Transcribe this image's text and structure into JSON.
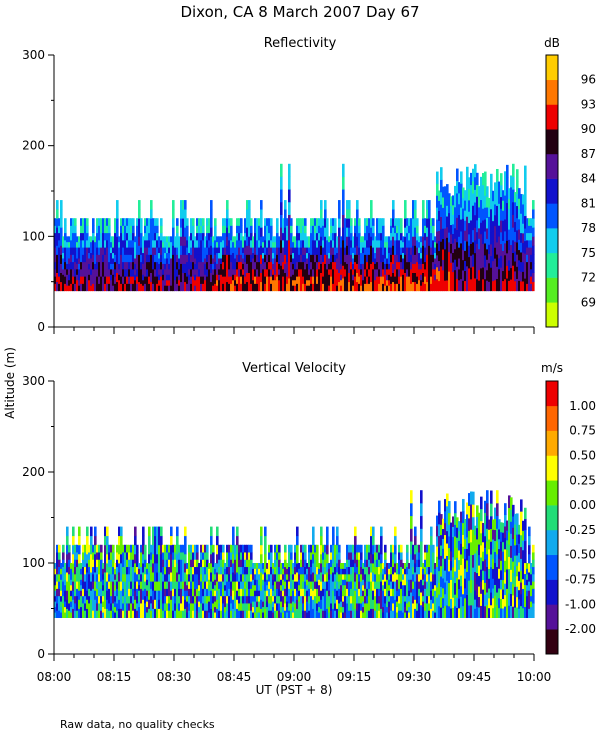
{
  "figure": {
    "title": "Dixon, CA  8 March 2007  Day  67",
    "ylabel": "Altitude (m)",
    "xlabel": "UT  (PST + 8)",
    "footnote": "Raw data, no quality checks"
  },
  "chart_data": [
    {
      "type": "heatmap",
      "title": "Reflectivity",
      "ylabel": "Altitude (m)",
      "xlabel": "UT  (PST + 8)",
      "x_ticks": [
        "08:00",
        "08:15",
        "08:30",
        "08:45",
        "09:00",
        "09:15",
        "09:30",
        "09:45",
        "10:00"
      ],
      "xlim_minutes": [
        0,
        120
      ],
      "y_ticks": [
        0,
        100,
        200,
        300
      ],
      "ylim": [
        0,
        300
      ],
      "colorbar": {
        "unit": "dB",
        "labels": [
          "69",
          "72",
          "75",
          "78",
          "81",
          "84",
          "87",
          "90",
          "93",
          "96"
        ],
        "colors": [
          "#ccff00",
          "#55ee22",
          "#22ee99",
          "#11ccee",
          "#0055ff",
          "#1111cc",
          "#551199",
          "#220011",
          "#ee0000",
          "#ff7700",
          "#ffcc00"
        ]
      },
      "data_profile": {
        "echo_base_m": 40,
        "typical_top_m": 120,
        "max_top_m": 180,
        "core_value_db": 87,
        "edge_value_db": 76
      }
    },
    {
      "type": "heatmap",
      "title": "Vertical Velocity",
      "ylabel": "Altitude (m)",
      "xlabel": "UT  (PST + 8)",
      "x_ticks": [
        "08:00",
        "08:15",
        "08:30",
        "08:45",
        "09:00",
        "09:15",
        "09:30",
        "09:45",
        "10:00"
      ],
      "xlim_minutes": [
        0,
        120
      ],
      "y_ticks": [
        0,
        100,
        200,
        300
      ],
      "ylim": [
        0,
        300
      ],
      "colorbar": {
        "unit": "m/s",
        "labels": [
          "-2.00",
          "-1.00",
          "-0.75",
          "-0.50",
          "-0.25",
          "0.00",
          "0.25",
          "0.50",
          "0.75",
          "1.00"
        ],
        "colors": [
          "#330011",
          "#551199",
          "#1111cc",
          "#0055ff",
          "#11aaee",
          "#22dd77",
          "#66ee00",
          "#ffff00",
          "#ffaa00",
          "#ff6600",
          "#ee0000"
        ]
      },
      "data_profile": {
        "echo_base_m": 40,
        "typical_top_m": 120,
        "max_top_m": 180,
        "value_range_ms": [
          -1.0,
          0.75
        ]
      }
    }
  ]
}
